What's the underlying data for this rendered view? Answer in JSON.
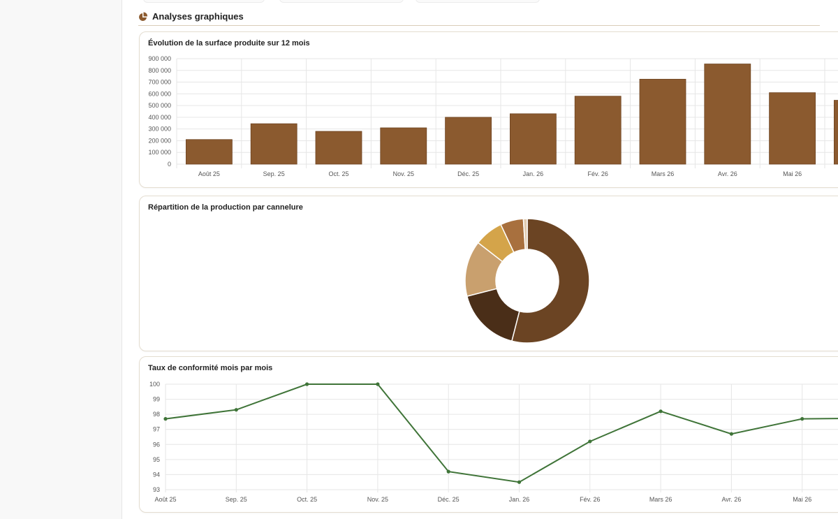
{
  "section": {
    "title": "Analyses graphiques",
    "icon": "pie-chart-icon"
  },
  "colors": {
    "accent": "#8b5a2f",
    "line": "#3f7438",
    "grid": "#e6e6e6",
    "border": "#e4ddd0"
  },
  "chart_data": [
    {
      "type": "bar",
      "title": "Évolution de la surface produite sur 12 mois",
      "categories": [
        "Août 25",
        "Sep. 25",
        "Oct. 25",
        "Nov. 25",
        "Déc. 25",
        "Jan. 26",
        "Fév. 26",
        "Mars 26",
        "Avr. 26",
        "Mai 26",
        ""
      ],
      "values": [
        210000,
        345000,
        280000,
        310000,
        400000,
        430000,
        580000,
        725000,
        855000,
        610000,
        545000
      ],
      "ylim": [
        0,
        900000
      ],
      "yticks": [
        "900 000",
        "800 000",
        "700 000",
        "600 000",
        "500 000",
        "400 000",
        "300 000",
        "200 000",
        "100 000",
        "0"
      ],
      "grid": true,
      "color": "#8b5a2f"
    },
    {
      "type": "pie",
      "title": "Répartition de la production par cannelure",
      "donut": true,
      "values": [
        54,
        17,
        14.5,
        7.5,
        6,
        1
      ],
      "colors": [
        "#6b4423",
        "#4a2e18",
        "#c9a06e",
        "#d4a44a",
        "#a8703e",
        "#e0cbb0"
      ]
    },
    {
      "type": "line",
      "title": "Taux de conformité mois par mois",
      "categories": [
        "Août 25",
        "Sep. 25",
        "Oct. 25",
        "Nov. 25",
        "Déc. 25",
        "Jan. 26",
        "Fév. 26",
        "Mars 26",
        "Avr. 26",
        "Mai 26",
        ""
      ],
      "values": [
        97.7,
        98.3,
        100,
        100,
        94.2,
        93.5,
        96.2,
        98.2,
        96.7,
        97.7,
        97.75
      ],
      "ylim": [
        93,
        100
      ],
      "yticks": [
        "100",
        "99",
        "98",
        "97",
        "96",
        "95",
        "94",
        "93"
      ],
      "grid": true,
      "color": "#3f7438"
    }
  ]
}
